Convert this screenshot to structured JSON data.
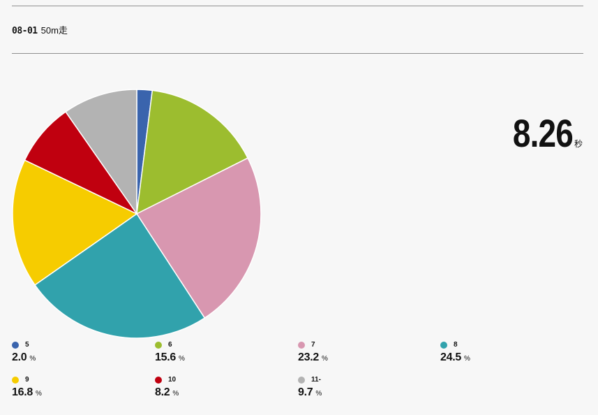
{
  "header": {
    "code": "08-01",
    "title": "50m走"
  },
  "summary": {
    "value": "8.26",
    "unit": "秒"
  },
  "legend": {
    "unit": "%",
    "items": [
      {
        "label": "5",
        "value": "2.0",
        "color": "#3a64ad"
      },
      {
        "label": "6",
        "value": "15.6",
        "color": "#9cbd2f"
      },
      {
        "label": "7",
        "value": "23.2",
        "color": "#d897b0"
      },
      {
        "label": "8",
        "value": "24.5",
        "color": "#31a2ac"
      },
      {
        "label": "9",
        "value": "16.8",
        "color": "#f6cc00"
      },
      {
        "label": "10",
        "value": "8.2",
        "color": "#c0000f"
      },
      {
        "label": "11-",
        "value": "9.7",
        "color": "#b3b3b3"
      }
    ]
  },
  "chart_data": {
    "type": "pie",
    "categories": [
      "5",
      "6",
      "7",
      "8",
      "9",
      "10",
      "11-"
    ],
    "values": [
      2.0,
      15.6,
      23.2,
      24.5,
      16.8,
      8.2,
      9.7
    ],
    "colors": [
      "#3a64ad",
      "#9cbd2f",
      "#d897b0",
      "#31a2ac",
      "#f6cc00",
      "#c0000f",
      "#b3b3b3"
    ],
    "legend_position": "bottom"
  }
}
